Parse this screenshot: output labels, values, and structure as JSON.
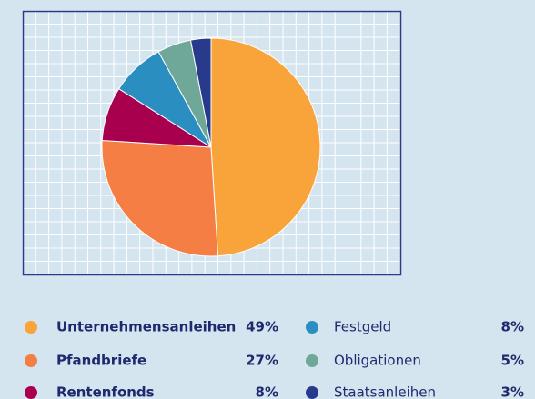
{
  "chart_data": {
    "type": "pie",
    "categories": [
      "Unternehmensanleihen",
      "Pfandbriefe",
      "Rentenfonds",
      "Festgeld",
      "Obligationen",
      "Staatsanleihen"
    ],
    "values": [
      49,
      27,
      8,
      8,
      5,
      3
    ],
    "value_labels": [
      "49%",
      "27%",
      "8%",
      "8%",
      "5%",
      "3%"
    ],
    "colors": [
      "#f9a43a",
      "#f47e43",
      "#a8004f",
      "#2a8fc0",
      "#6fa898",
      "#283a8c"
    ]
  }
}
